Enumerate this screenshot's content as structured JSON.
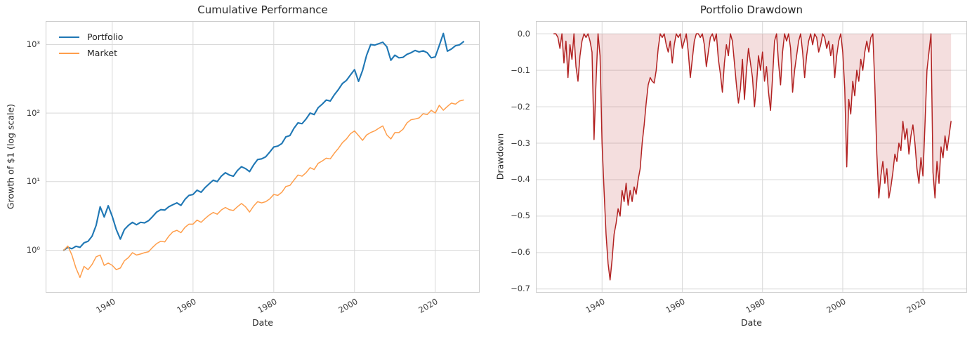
{
  "figure": {
    "background": "#ffffff",
    "grid_color": "#d9d9d9",
    "spine_color": "#cccccc",
    "title_color": "#262626",
    "tick_color": "#3b3b3b",
    "label_color": "#262626"
  },
  "chart_data": [
    {
      "type": "line",
      "title": "Cumulative Performance",
      "xlabel": "Date",
      "ylabel": "Growth of $1 (log scale)",
      "yscale": "log",
      "xlim": [
        1923.5,
        2031
      ],
      "ylim": [
        0.24,
        2200
      ],
      "xticks": [
        1940,
        1960,
        1980,
        2000,
        2020
      ],
      "yticks": [
        1,
        10,
        100,
        1000
      ],
      "ytick_labels": [
        "10⁰",
        "10¹",
        "10²",
        "10³"
      ],
      "grid": true,
      "legend": {
        "position": "upper left",
        "entries": [
          "Portfolio",
          "Market"
        ]
      },
      "x": {
        "start": 1928,
        "step": 1,
        "count": 100
      },
      "series": [
        {
          "name": "Portfolio",
          "color": "#1f77b4",
          "line_width": 2.1,
          "values": [
            1.0,
            1.1,
            1.05,
            1.14,
            1.1,
            1.28,
            1.35,
            1.6,
            2.3,
            4.3,
            3.05,
            4.45,
            3.1,
            2.0,
            1.45,
            2.0,
            2.3,
            2.55,
            2.35,
            2.55,
            2.5,
            2.7,
            3.1,
            3.6,
            3.9,
            3.85,
            4.3,
            4.6,
            4.9,
            4.5,
            5.5,
            6.3,
            6.5,
            7.5,
            7.0,
            8.2,
            9.3,
            10.5,
            10.0,
            12.0,
            13.5,
            12.5,
            12.0,
            14.5,
            16.5,
            15.5,
            14.0,
            17.5,
            21.0,
            21.5,
            23.0,
            27.0,
            32.0,
            33.0,
            36.0,
            45.0,
            47.0,
            60.0,
            72.0,
            70.0,
            82.0,
            100,
            95,
            120,
            135,
            155,
            150,
            185,
            220,
            270,
            300,
            360,
            430,
            290,
            420,
            700,
            1000,
            980,
            1030,
            1080,
            930,
            590,
            700,
            640,
            650,
            720,
            760,
            820,
            780,
            810,
            760,
            640,
            660,
            970,
            1450,
            800,
            860,
            960,
            990,
            1100
          ]
        },
        {
          "name": "Market",
          "color": "#ff9e4b",
          "line_width": 1.5,
          "values": [
            1.0,
            1.15,
            0.85,
            0.55,
            0.4,
            0.58,
            0.52,
            0.62,
            0.8,
            0.85,
            0.6,
            0.65,
            0.6,
            0.52,
            0.55,
            0.7,
            0.78,
            0.92,
            0.85,
            0.88,
            0.92,
            0.95,
            1.1,
            1.25,
            1.35,
            1.32,
            1.6,
            1.85,
            1.95,
            1.8,
            2.15,
            2.4,
            2.4,
            2.75,
            2.55,
            2.9,
            3.25,
            3.55,
            3.35,
            3.85,
            4.2,
            3.9,
            3.8,
            4.3,
            4.8,
            4.3,
            3.6,
            4.4,
            5.1,
            4.9,
            5.1,
            5.6,
            6.5,
            6.3,
            7.0,
            8.5,
            8.8,
            10.5,
            12.5,
            12.0,
            13.5,
            16.0,
            15.0,
            18.5,
            20.0,
            22.0,
            21.5,
            26.0,
            30.5,
            37.0,
            42.0,
            50.0,
            55.0,
            47.0,
            40.0,
            48.0,
            52.0,
            55.0,
            60.0,
            65.0,
            48.0,
            42.0,
            52.0,
            52.0,
            58.0,
            72.0,
            80.0,
            82.0,
            85.0,
            98.0,
            95.0,
            110,
            100,
            130,
            110,
            125,
            140,
            135,
            150,
            155
          ]
        }
      ]
    },
    {
      "type": "area",
      "title": "Portfolio Drawdown",
      "xlabel": "Date",
      "ylabel": "Drawdown",
      "yscale": "linear",
      "xlim": [
        1923.5,
        2031
      ],
      "ylim": [
        -0.71,
        0.035
      ],
      "xticks": [
        1940,
        1960,
        1980,
        2000,
        2020
      ],
      "yticks": [
        0,
        -0.1,
        -0.2,
        -0.3,
        -0.4,
        -0.5,
        -0.6,
        -0.7
      ],
      "ytick_labels": [
        "0.0",
        "−0.1",
        "−0.2",
        "−0.3",
        "−0.4",
        "−0.5",
        "−0.6",
        "−0.7"
      ],
      "grid": true,
      "x": {
        "start": 1928,
        "step": 0.5,
        "count": 199
      },
      "series": [
        {
          "name": "Drawdown",
          "color": "#b22222",
          "fill_color": "rgba(178,34,34,0.15)",
          "line_width": 1.5,
          "baseline": 0,
          "values": [
            0,
            0,
            -0.01,
            -0.04,
            0,
            -0.08,
            -0.02,
            -0.12,
            -0.03,
            -0.07,
            0,
            -0.09,
            -0.13,
            -0.06,
            -0.02,
            0,
            -0.01,
            0,
            -0.02,
            -0.05,
            -0.29,
            -0.13,
            0,
            -0.06,
            -0.3,
            -0.43,
            -0.55,
            -0.63,
            -0.675,
            -0.62,
            -0.55,
            -0.52,
            -0.48,
            -0.5,
            -0.43,
            -0.46,
            -0.41,
            -0.47,
            -0.43,
            -0.46,
            -0.42,
            -0.44,
            -0.4,
            -0.37,
            -0.3,
            -0.25,
            -0.19,
            -0.14,
            -0.12,
            -0.13,
            -0.135,
            -0.1,
            -0.04,
            0,
            -0.01,
            0,
            -0.03,
            -0.05,
            -0.02,
            -0.08,
            -0.03,
            0,
            -0.01,
            0,
            -0.04,
            -0.02,
            0,
            -0.05,
            -0.12,
            -0.07,
            -0.02,
            0,
            0,
            -0.01,
            0,
            -0.03,
            -0.09,
            -0.05,
            -0.01,
            0,
            -0.02,
            0,
            -0.07,
            -0.11,
            -0.16,
            -0.08,
            -0.03,
            -0.06,
            0,
            -0.02,
            -0.08,
            -0.14,
            -0.19,
            -0.15,
            -0.07,
            -0.18,
            -0.1,
            -0.04,
            -0.08,
            -0.12,
            -0.2,
            -0.14,
            -0.06,
            -0.1,
            -0.05,
            -0.13,
            -0.09,
            -0.16,
            -0.21,
            -0.12,
            -0.02,
            0,
            -0.08,
            -0.14,
            -0.05,
            0,
            -0.02,
            0,
            -0.04,
            -0.16,
            -0.1,
            -0.06,
            -0.02,
            0,
            -0.05,
            -0.12,
            -0.06,
            -0.02,
            0,
            -0.03,
            0,
            -0.01,
            -0.05,
            -0.03,
            0,
            -0.01,
            -0.04,
            -0.02,
            -0.06,
            -0.03,
            -0.12,
            -0.06,
            -0.02,
            0,
            -0.05,
            -0.15,
            -0.365,
            -0.18,
            -0.22,
            -0.13,
            -0.17,
            -0.1,
            -0.13,
            -0.07,
            -0.1,
            -0.05,
            -0.02,
            -0.05,
            -0.01,
            0,
            -0.14,
            -0.33,
            -0.45,
            -0.39,
            -0.35,
            -0.41,
            -0.37,
            -0.45,
            -0.42,
            -0.38,
            -0.33,
            -0.35,
            -0.3,
            -0.32,
            -0.24,
            -0.29,
            -0.26,
            -0.33,
            -0.28,
            -0.25,
            -0.3,
            -0.37,
            -0.41,
            -0.34,
            -0.39,
            -0.25,
            -0.1,
            -0.05,
            0,
            -0.38,
            -0.45,
            -0.35,
            -0.41,
            -0.31,
            -0.34,
            -0.28,
            -0.32,
            -0.28,
            -0.24
          ]
        }
      ]
    }
  ]
}
